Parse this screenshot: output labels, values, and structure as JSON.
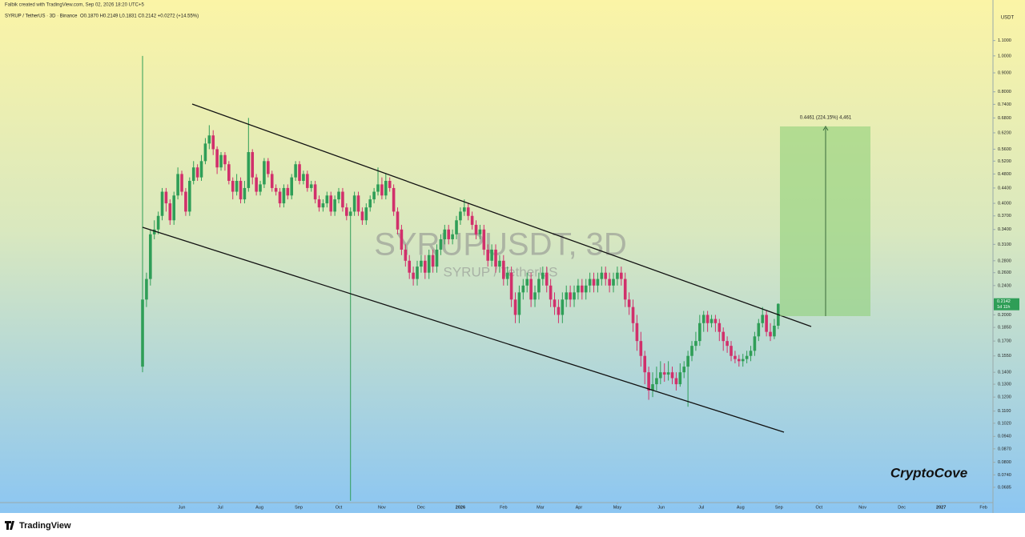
{
  "header": {
    "credit": "Falbik created with TradingView.com, Sep 02, 2026 18:20 UTC+5",
    "symbol": "SYRUP / TetherUS · 3D · Binance",
    "ohlc": "O0.1870 H0.2149 L0.1831 C0.2142 +0.0272 (+14.55%)"
  },
  "chart_data": {
    "type": "candlestick",
    "watermark": "SYRUPUSDT, 3D",
    "watermark_sub": "SYRUP / TetherUS",
    "y_axis_label": "USDT",
    "log_scale": true,
    "grid": false,
    "up_color": "#2f9e57",
    "down_color": "#d1306b",
    "x": [
      0,
      1,
      2,
      3,
      4,
      5,
      6,
      7,
      8,
      9,
      10,
      11,
      12,
      13,
      14,
      15,
      16,
      17,
      18,
      19,
      20,
      21,
      22,
      23,
      24,
      25,
      26,
      27,
      28,
      29,
      30,
      31,
      32,
      33,
      34,
      35,
      36,
      37,
      38,
      39,
      40,
      41,
      42,
      43,
      44,
      45,
      46,
      47,
      48,
      49,
      50,
      51,
      52,
      53,
      54,
      55,
      56,
      57,
      58,
      59,
      60,
      61,
      62,
      63,
      64,
      65,
      66,
      67,
      68,
      69,
      70,
      71,
      72,
      73,
      74,
      75,
      76,
      77,
      78,
      79,
      80,
      81,
      82,
      83,
      84,
      85,
      86,
      87,
      88,
      89,
      90,
      91,
      92,
      93,
      94,
      95,
      96,
      97,
      98,
      99,
      100,
      101,
      102,
      103,
      104,
      105,
      106,
      107,
      108,
      109,
      110,
      111,
      112,
      113,
      114,
      115,
      116,
      117,
      118,
      119,
      120,
      121,
      122,
      123,
      124,
      125,
      126,
      127,
      128,
      129,
      130,
      131,
      132,
      133,
      134,
      135,
      136,
      137,
      138,
      139,
      140,
      141,
      142,
      143,
      144,
      145,
      146,
      147,
      148,
      149,
      150,
      151,
      152,
      153,
      154,
      155,
      156,
      157,
      158,
      159,
      160,
      161,
      162
    ],
    "open": [
      0.145,
      0.22,
      0.25,
      0.33,
      0.34,
      0.37,
      0.43,
      0.4,
      0.36,
      0.42,
      0.48,
      0.43,
      0.38,
      0.46,
      0.5,
      0.47,
      0.52,
      0.58,
      0.61,
      0.56,
      0.5,
      0.54,
      0.51,
      0.46,
      0.43,
      0.46,
      0.41,
      0.44,
      0.55,
      0.47,
      0.43,
      0.45,
      0.52,
      0.48,
      0.44,
      0.43,
      0.4,
      0.44,
      0.42,
      0.47,
      0.51,
      0.46,
      0.48,
      0.44,
      0.45,
      0.41,
      0.39,
      0.4,
      0.42,
      0.38,
      0.41,
      0.43,
      0.39,
      0.37,
      0.38,
      0.42,
      0.38,
      0.36,
      0.39,
      0.41,
      0.43,
      0.45,
      0.42,
      0.46,
      0.44,
      0.38,
      0.34,
      0.3,
      0.28,
      0.26,
      0.25,
      0.27,
      0.28,
      0.26,
      0.29,
      0.27,
      0.3,
      0.32,
      0.34,
      0.32,
      0.33,
      0.36,
      0.38,
      0.39,
      0.37,
      0.35,
      0.33,
      0.34,
      0.3,
      0.28,
      0.3,
      0.27,
      0.28,
      0.25,
      0.26,
      0.22,
      0.2,
      0.23,
      0.24,
      0.25,
      0.22,
      0.23,
      0.25,
      0.26,
      0.24,
      0.22,
      0.21,
      0.2,
      0.22,
      0.23,
      0.22,
      0.23,
      0.24,
      0.23,
      0.24,
      0.25,
      0.24,
      0.25,
      0.26,
      0.25,
      0.24,
      0.25,
      0.26,
      0.25,
      0.22,
      0.21,
      0.19,
      0.17,
      0.155,
      0.14,
      0.125,
      0.13,
      0.135,
      0.14,
      0.138,
      0.14,
      0.135,
      0.13,
      0.14,
      0.145,
      0.155,
      0.165,
      0.17,
      0.19,
      0.2,
      0.19,
      0.195,
      0.19,
      0.18,
      0.17,
      0.165,
      0.155,
      0.152,
      0.15,
      0.152,
      0.155,
      0.16,
      0.175,
      0.19,
      0.2,
      0.18,
      0.175,
      0.187
    ],
    "high": [
      1.0,
      0.26,
      0.34,
      0.36,
      0.38,
      0.44,
      0.44,
      0.41,
      0.43,
      0.5,
      0.49,
      0.44,
      0.47,
      0.52,
      0.51,
      0.54,
      0.6,
      0.65,
      0.63,
      0.57,
      0.55,
      0.55,
      0.52,
      0.47,
      0.48,
      0.47,
      0.46,
      0.68,
      0.56,
      0.48,
      0.46,
      0.53,
      0.53,
      0.49,
      0.45,
      0.44,
      0.45,
      0.45,
      0.48,
      0.52,
      0.52,
      0.49,
      0.49,
      0.46,
      0.46,
      0.42,
      0.41,
      0.43,
      0.43,
      0.42,
      0.44,
      0.44,
      0.4,
      0.39,
      0.43,
      0.43,
      0.39,
      0.4,
      0.42,
      0.44,
      0.5,
      0.47,
      0.48,
      0.47,
      0.45,
      0.39,
      0.35,
      0.31,
      0.29,
      0.27,
      0.28,
      0.29,
      0.29,
      0.3,
      0.3,
      0.31,
      0.33,
      0.35,
      0.35,
      0.34,
      0.37,
      0.39,
      0.41,
      0.4,
      0.38,
      0.36,
      0.35,
      0.35,
      0.31,
      0.31,
      0.31,
      0.29,
      0.29,
      0.27,
      0.27,
      0.23,
      0.24,
      0.25,
      0.26,
      0.26,
      0.24,
      0.26,
      0.27,
      0.27,
      0.25,
      0.23,
      0.22,
      0.23,
      0.24,
      0.24,
      0.24,
      0.25,
      0.25,
      0.25,
      0.26,
      0.26,
      0.26,
      0.27,
      0.27,
      0.26,
      0.26,
      0.27,
      0.27,
      0.26,
      0.23,
      0.22,
      0.2,
      0.18,
      0.16,
      0.145,
      0.14,
      0.145,
      0.15,
      0.148,
      0.15,
      0.145,
      0.14,
      0.148,
      0.15,
      0.16,
      0.17,
      0.18,
      0.2,
      0.205,
      0.205,
      0.2,
      0.2,
      0.195,
      0.185,
      0.175,
      0.17,
      0.16,
      0.156,
      0.157,
      0.16,
      0.165,
      0.18,
      0.195,
      0.21,
      0.205,
      0.19,
      0.195,
      0.2149
    ],
    "low": [
      0.14,
      0.21,
      0.24,
      0.32,
      0.33,
      0.36,
      0.38,
      0.35,
      0.35,
      0.41,
      0.42,
      0.37,
      0.37,
      0.45,
      0.46,
      0.46,
      0.51,
      0.56,
      0.54,
      0.48,
      0.49,
      0.49,
      0.45,
      0.41,
      0.42,
      0.4,
      0.4,
      0.43,
      0.45,
      0.42,
      0.42,
      0.44,
      0.47,
      0.43,
      0.42,
      0.39,
      0.39,
      0.41,
      0.41,
      0.46,
      0.45,
      0.45,
      0.43,
      0.43,
      0.4,
      0.38,
      0.38,
      0.39,
      0.37,
      0.37,
      0.4,
      0.38,
      0.36,
      0.063,
      0.37,
      0.37,
      0.35,
      0.35,
      0.38,
      0.4,
      0.42,
      0.41,
      0.41,
      0.43,
      0.37,
      0.33,
      0.29,
      0.27,
      0.25,
      0.24,
      0.24,
      0.26,
      0.25,
      0.25,
      0.26,
      0.26,
      0.29,
      0.31,
      0.31,
      0.31,
      0.32,
      0.35,
      0.37,
      0.36,
      0.34,
      0.32,
      0.32,
      0.29,
      0.27,
      0.27,
      0.26,
      0.26,
      0.24,
      0.24,
      0.21,
      0.19,
      0.19,
      0.22,
      0.23,
      0.21,
      0.21,
      0.22,
      0.24,
      0.23,
      0.21,
      0.2,
      0.19,
      0.19,
      0.21,
      0.21,
      0.21,
      0.22,
      0.22,
      0.22,
      0.23,
      0.23,
      0.23,
      0.24,
      0.24,
      0.23,
      0.23,
      0.24,
      0.24,
      0.21,
      0.2,
      0.18,
      0.16,
      0.145,
      0.13,
      0.118,
      0.12,
      0.125,
      0.13,
      0.132,
      0.133,
      0.13,
      0.125,
      0.128,
      0.135,
      0.113,
      0.15,
      0.16,
      0.165,
      0.18,
      0.18,
      0.185,
      0.18,
      0.17,
      0.16,
      0.158,
      0.15,
      0.148,
      0.145,
      0.145,
      0.148,
      0.15,
      0.155,
      0.17,
      0.185,
      0.175,
      0.17,
      0.172,
      0.1831
    ],
    "close": [
      0.22,
      0.25,
      0.33,
      0.34,
      0.37,
      0.43,
      0.4,
      0.36,
      0.42,
      0.48,
      0.43,
      0.38,
      0.46,
      0.5,
      0.47,
      0.52,
      0.58,
      0.61,
      0.56,
      0.5,
      0.54,
      0.51,
      0.46,
      0.43,
      0.46,
      0.41,
      0.44,
      0.55,
      0.47,
      0.43,
      0.45,
      0.52,
      0.48,
      0.44,
      0.43,
      0.4,
      0.44,
      0.42,
      0.47,
      0.51,
      0.46,
      0.48,
      0.44,
      0.45,
      0.41,
      0.39,
      0.4,
      0.42,
      0.38,
      0.41,
      0.43,
      0.39,
      0.37,
      0.38,
      0.42,
      0.38,
      0.36,
      0.39,
      0.41,
      0.43,
      0.45,
      0.42,
      0.46,
      0.44,
      0.38,
      0.34,
      0.3,
      0.28,
      0.26,
      0.25,
      0.27,
      0.28,
      0.26,
      0.29,
      0.27,
      0.3,
      0.32,
      0.34,
      0.32,
      0.33,
      0.36,
      0.38,
      0.39,
      0.37,
      0.35,
      0.33,
      0.34,
      0.3,
      0.28,
      0.3,
      0.27,
      0.28,
      0.25,
      0.26,
      0.22,
      0.2,
      0.23,
      0.24,
      0.25,
      0.22,
      0.23,
      0.25,
      0.26,
      0.24,
      0.22,
      0.21,
      0.2,
      0.22,
      0.23,
      0.22,
      0.23,
      0.24,
      0.23,
      0.24,
      0.25,
      0.24,
      0.25,
      0.26,
      0.25,
      0.24,
      0.25,
      0.26,
      0.25,
      0.22,
      0.21,
      0.19,
      0.17,
      0.155,
      0.14,
      0.125,
      0.13,
      0.135,
      0.14,
      0.138,
      0.14,
      0.135,
      0.13,
      0.14,
      0.145,
      0.155,
      0.165,
      0.17,
      0.19,
      0.2,
      0.19,
      0.195,
      0.19,
      0.18,
      0.17,
      0.165,
      0.155,
      0.152,
      0.15,
      0.152,
      0.155,
      0.16,
      0.175,
      0.19,
      0.2,
      0.18,
      0.175,
      0.187,
      0.2142
    ],
    "xlim": [
      -36.33,
      216.73
    ],
    "xticks": [
      {
        "value": 10,
        "label": "Jun"
      },
      {
        "value": 19.8,
        "label": "Jul"
      },
      {
        "value": 29.8,
        "label": "Aug"
      },
      {
        "value": 39.8,
        "label": "Sep"
      },
      {
        "value": 50,
        "label": "Oct"
      },
      {
        "value": 61,
        "label": "Nov"
      },
      {
        "value": 71,
        "label": "Dec"
      },
      {
        "value": 81,
        "label": "2026"
      },
      {
        "value": 92,
        "label": "Feb"
      },
      {
        "value": 101.4,
        "label": "Mar"
      },
      {
        "value": 111.2,
        "label": "Apr"
      },
      {
        "value": 121,
        "label": "May"
      },
      {
        "value": 132.2,
        "label": "Jun"
      },
      {
        "value": 142.4,
        "label": "Jul"
      },
      {
        "value": 152.4,
        "label": "Aug"
      },
      {
        "value": 162.2,
        "label": "Sep"
      },
      {
        "value": 172.4,
        "label": "Oct"
      },
      {
        "value": 183.5,
        "label": "Nov"
      },
      {
        "value": 193.5,
        "label": "Dec"
      },
      {
        "value": 203.5,
        "label": "2027"
      },
      {
        "value": 214.3,
        "label": "Feb"
      }
    ],
    "ylim": [
      0.0623,
      1.32
    ],
    "yticks": [
      {
        "value": 1.1,
        "label": "1.1000"
      },
      {
        "value": 1.0,
        "label": "1.0000"
      },
      {
        "value": 0.9,
        "label": "0.9000"
      },
      {
        "value": 0.8,
        "label": "0.8000"
      },
      {
        "value": 0.74,
        "label": "0.7400"
      },
      {
        "value": 0.68,
        "label": "0.6800"
      },
      {
        "value": 0.62,
        "label": "0.6200"
      },
      {
        "value": 0.56,
        "label": "0.5600"
      },
      {
        "value": 0.52,
        "label": "0.5200"
      },
      {
        "value": 0.48,
        "label": "0.4800"
      },
      {
        "value": 0.44,
        "label": "0.4400"
      },
      {
        "value": 0.4,
        "label": "0.4000"
      },
      {
        "value": 0.37,
        "label": "0.3700"
      },
      {
        "value": 0.34,
        "label": "0.3400"
      },
      {
        "value": 0.31,
        "label": "0.3100"
      },
      {
        "value": 0.28,
        "label": "0.2800"
      },
      {
        "value": 0.26,
        "label": "0.2600"
      },
      {
        "value": 0.24,
        "label": "0.2400"
      },
      {
        "value": 0.2,
        "label": "0.2000"
      },
      {
        "value": 0.185,
        "label": "0.1850"
      },
      {
        "value": 0.17,
        "label": "0.1700"
      },
      {
        "value": 0.155,
        "label": "0.1550"
      },
      {
        "value": 0.14,
        "label": "0.1400"
      },
      {
        "value": 0.13,
        "label": "0.1300"
      },
      {
        "value": 0.12,
        "label": "0.1200"
      },
      {
        "value": 0.11,
        "label": "0.1100"
      },
      {
        "value": 0.102,
        "label": "0.1020"
      },
      {
        "value": 0.094,
        "label": "0.0940"
      },
      {
        "value": 0.087,
        "label": "0.0870"
      },
      {
        "value": 0.08,
        "label": "0.0800"
      },
      {
        "value": 0.074,
        "label": "0.0740"
      },
      {
        "value": 0.0685,
        "label": "0.0685"
      }
    ],
    "price_tag": {
      "value": 0.2142,
      "label": "0.2142"
    },
    "countdown": "1d 11h",
    "measure_label": "0.4461 (224.15%) 4,461",
    "signature": "CryptoCove"
  },
  "footer": {
    "logo": "TradingView"
  }
}
